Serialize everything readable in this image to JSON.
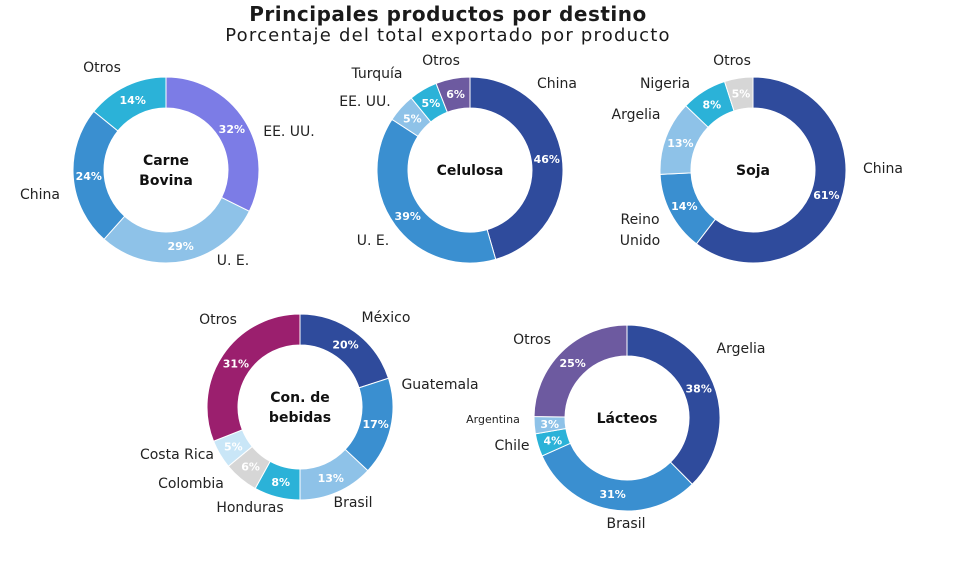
{
  "title": "Principales productos por destino",
  "subtitle": "Porcentaje del total exportado por producto",
  "chart_data": [
    {
      "type": "pie",
      "center_label": [
        "Carne",
        "Bovina"
      ],
      "slices": [
        {
          "category": "EE. UU.",
          "value": 32,
          "label": "32%",
          "color": "#7c7ce6"
        },
        {
          "category": "U. E.",
          "value": 29,
          "label": "29%",
          "color": "#8ec2e8"
        },
        {
          "category": "China",
          "value": 24,
          "label": "24%",
          "color": "#3a8fd0"
        },
        {
          "category": "Otros",
          "value": 14,
          "label": "14%",
          "color": "#2bb2d8"
        }
      ]
    },
    {
      "type": "pie",
      "center_label": [
        "Celulosa"
      ],
      "slices": [
        {
          "category": "China",
          "value": 46,
          "label": "46%",
          "color": "#2f4b9c"
        },
        {
          "category": "U. E.",
          "value": 39,
          "label": "39%",
          "color": "#3a8fd0"
        },
        {
          "category": "EE. UU.",
          "value": 5,
          "label": "5%",
          "color": "#8ec2e8"
        },
        {
          "category": "Turquía",
          "value": 5,
          "label": "5%",
          "color": "#2bb2d8"
        },
        {
          "category": "Otros",
          "value": 6,
          "label": "6%",
          "color": "#6d5aa0"
        }
      ]
    },
    {
      "type": "pie",
      "center_label": [
        "Soja"
      ],
      "slices": [
        {
          "category": "China",
          "value": 61,
          "label": "61%",
          "color": "#2f4b9c"
        },
        {
          "category": "Reino Unido",
          "value": 14,
          "label": "14%",
          "color": "#3a8fd0"
        },
        {
          "category": "Argelia",
          "value": 13,
          "label": "13%",
          "color": "#8ec2e8"
        },
        {
          "category": "Nigeria",
          "value": 8,
          "label": "8%",
          "color": "#2bb2d8"
        },
        {
          "category": "Otros",
          "value": 5,
          "label": "5%",
          "color": "#d6d6d6"
        }
      ]
    },
    {
      "type": "pie",
      "center_label": [
        "Con. de",
        "bebidas"
      ],
      "slices": [
        {
          "category": "México",
          "value": 20,
          "label": "20%",
          "color": "#2f4b9c"
        },
        {
          "category": "Guatemala",
          "value": 17,
          "label": "17%",
          "color": "#3a8fd0"
        },
        {
          "category": "Brasil",
          "value": 13,
          "label": "13%",
          "color": "#8ec2e8"
        },
        {
          "category": "Honduras",
          "value": 8,
          "label": "8%",
          "color": "#2bb2d8"
        },
        {
          "category": "Colombia",
          "value": 6,
          "label": "6%",
          "color": "#d6d6d6"
        },
        {
          "category": "Costa Rica",
          "value": 5,
          "label": "5%",
          "color": "#c9e6f7"
        },
        {
          "category": "Otros",
          "value": 31,
          "label": "31%",
          "color": "#9b1f6e"
        }
      ]
    },
    {
      "type": "pie",
      "center_label": [
        "Lácteos"
      ],
      "slices": [
        {
          "category": "Argelia",
          "value": 38,
          "label": "38%",
          "color": "#2f4b9c"
        },
        {
          "category": "Brasil",
          "value": 31,
          "label": "31%",
          "color": "#3a8fd0"
        },
        {
          "category": "Chile",
          "value": 4,
          "label": "4%",
          "color": "#2bb2d8"
        },
        {
          "category": "Argentina",
          "value": 3,
          "label": "3%",
          "color": "#8ec2e8"
        },
        {
          "category": "Otros",
          "value": 25,
          "label": "25%",
          "color": "#6d5aa0"
        }
      ]
    }
  ]
}
